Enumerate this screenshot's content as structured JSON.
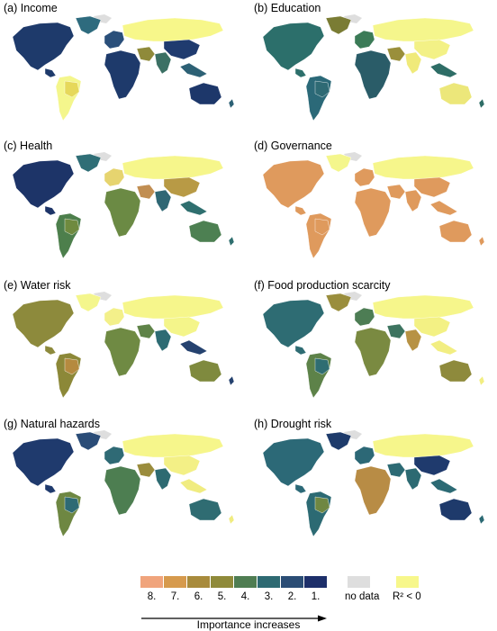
{
  "panels": [
    {
      "label": "(a) Income",
      "colors": {
        "na": "#1e3a6b",
        "green": "#2e6b7e",
        "sa": "#f4f68c",
        "br": "#e6d85a",
        "eu": "#2a4f7a",
        "ru": "#f7f78a",
        "af": "#1e3a6b",
        "me": "#8f8a3a",
        "in": "#3b7064",
        "cn": "#1f3b6f",
        "sea": "#2d6175",
        "au": "#1d376a"
      }
    },
    {
      "label": "(b) Education",
      "colors": {
        "na": "#2c6f6b",
        "green": "#7a7c34",
        "sa": "#2b6978",
        "br": "#2e6a74",
        "eu": "#3b7b57",
        "ru": "#f5f68c",
        "af": "#2a5c68",
        "me": "#9a8f3b",
        "in": "#f0ea7a",
        "cn": "#f3f186",
        "sea": "#2e6d66",
        "au": "#ece77a"
      }
    },
    {
      "label": "(c) Health",
      "colors": {
        "na": "#1d3468",
        "green": "#2f6e76",
        "sa": "#4d7f4c",
        "br": "#6f8a3f",
        "eu": "#e6d46f",
        "ru": "#f6f68b",
        "af": "#6b8a44",
        "me": "#c18e52",
        "in": "#2f6774",
        "cn": "#b89a45",
        "sea": "#2f6f6f",
        "au": "#4d8052"
      }
    },
    {
      "label": "(d) Governance",
      "colors": {
        "na": "#df9a5d",
        "green": "#f4f68c",
        "sa": "#df9a5d",
        "br": "#df9a5d",
        "eu": "#df9a5d",
        "ru": "#f6f68b",
        "af": "#df9a5d",
        "me": "#df9a5d",
        "in": "#df9a5d",
        "cn": "#df9a5d",
        "sea": "#df9a5d",
        "au": "#df9a5d"
      }
    },
    {
      "label": "(e) Water risk",
      "colors": {
        "na": "#8d8a3c",
        "green": "#f4f68c",
        "sa": "#8c8838",
        "br": "#b58a3f",
        "eu": "#f3f08a",
        "ru": "#f6f68b",
        "af": "#6f8a43",
        "me": "#5f8348",
        "in": "#2d6b73",
        "cn": "#f4f58a",
        "sea": "#25426f",
        "au": "#7f8a3e"
      }
    },
    {
      "label": "(f) Food production scarcity",
      "colors": {
        "na": "#2e6c73",
        "green": "#9a8e3d",
        "sa": "#5d8249",
        "br": "#2f6d72",
        "eu": "#4d7d54",
        "ru": "#f6f68b",
        "af": "#7a8a41",
        "me": "#3d7460",
        "in": "#b79244",
        "cn": "#f3f184",
        "sea": "#f2ee82",
        "au": "#8e8a3c"
      }
    },
    {
      "label": "(g) Natural hazards",
      "colors": {
        "na": "#1f3a6d",
        "green": "#2a4c77",
        "sa": "#6e8742",
        "br": "#2e6a74",
        "eu": "#2f6a75",
        "ru": "#f6f68b",
        "af": "#4d7e51",
        "me": "#9a8c3c",
        "in": "#2d6a71",
        "cn": "#f3f086",
        "sea": "#f0ec80",
        "au": "#2f6c72"
      }
    },
    {
      "label": "(h) Drought risk",
      "colors": {
        "na": "#2c6977",
        "green": "#1e3b6b",
        "sa": "#2c6a73",
        "br": "#6f8742",
        "eu": "#2c6876",
        "ru": "#f6f68b",
        "af": "#b88c45",
        "me": "#2c6a74",
        "in": "#2c6a72",
        "cn": "#1f3a6d",
        "sea": "#2c6a74",
        "au": "#1e3a6b"
      }
    }
  ],
  "legend": {
    "colors": [
      "#f0a47c",
      "#d69a4d",
      "#8f8a3a",
      "#4f7d52",
      "#2e6a72",
      "#2b4d75",
      "#1d2f6a"
    ],
    "ranks": [
      "8.",
      "7.",
      "6.",
      "5.",
      "4.",
      "3.",
      "2.",
      "1."
    ],
    "swatch_colors": [
      "#f0a47c",
      "#d69a4d",
      "#a88b3c",
      "#8f8a3a",
      "#4f7d52",
      "#2e6a72",
      "#2b4d75",
      "#1d2f6a"
    ],
    "no_data_label": "no data",
    "no_data_color": "#dedede",
    "r2_label": "R² < 0",
    "r2_color": "#f7f78b",
    "importance_label": "Importance increases"
  }
}
